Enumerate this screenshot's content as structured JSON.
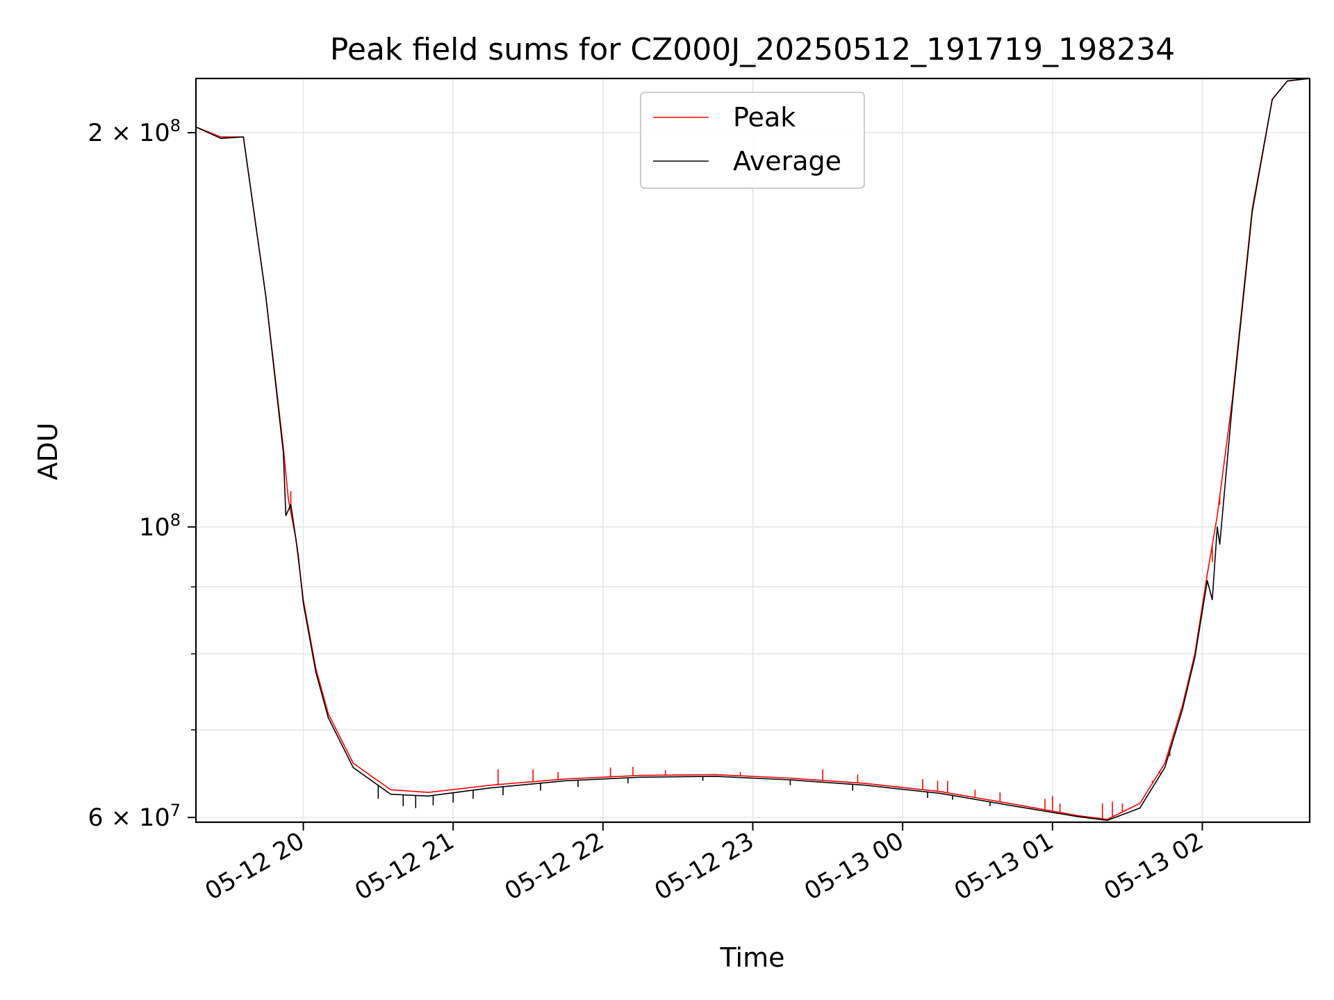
{
  "chart_data": {
    "type": "line",
    "title": "Peak field sums for CZ000J_20250512_191719_198234",
    "xlabel": "Time",
    "ylabel": "ADU",
    "yscale": "log",
    "xlim": [
      "2025-05-12T19:17:00",
      "2025-05-13T02:43:00"
    ],
    "ylim": [
      59500000,
      220000000
    ],
    "grid": true,
    "legend": "upper center",
    "x_ticks": [
      {
        "t": "2025-05-12T20:00",
        "label": "05-12 20"
      },
      {
        "t": "2025-05-12T21:00",
        "label": "05-12 21"
      },
      {
        "t": "2025-05-12T22:00",
        "label": "05-12 22"
      },
      {
        "t": "2025-05-12T23:00",
        "label": "05-12 23"
      },
      {
        "t": "2025-05-13T00:00",
        "label": "05-13 00"
      },
      {
        "t": "2025-05-13T01:00",
        "label": "05-13 01"
      },
      {
        "t": "2025-05-13T02:00",
        "label": "05-13 02"
      }
    ],
    "y_ticks": [
      {
        "v": 60000000,
        "label": "6 × 10",
        "sup": "7"
      },
      {
        "v": 100000000,
        "label": "10",
        "sup": "8"
      },
      {
        "v": 200000000,
        "label": "2 × 10",
        "sup": "8"
      }
    ],
    "y_minor_ticks": [
      70000000,
      80000000,
      90000000
    ],
    "series": [
      {
        "name": "Peak",
        "color": "#ff0000",
        "points": [
          [
            "2025-05-12T19:17",
            202000000
          ],
          [
            "2025-05-12T19:27",
            198500000
          ],
          [
            "2025-05-12T19:36",
            198500000
          ],
          [
            "2025-05-12T19:45",
            150000000
          ],
          [
            "2025-05-12T19:52",
            115000000
          ],
          [
            "2025-05-12T19:54",
            105000000
          ],
          [
            "2025-05-12T19:57",
            98000000
          ],
          [
            "2025-05-12T20:00",
            88000000
          ],
          [
            "2025-05-12T20:05",
            78000000
          ],
          [
            "2025-05-12T20:10",
            72000000
          ],
          [
            "2025-05-12T20:20",
            66000000
          ],
          [
            "2025-05-12T20:35",
            63000000
          ],
          [
            "2025-05-12T20:50",
            62700000
          ],
          [
            "2025-05-12T21:15",
            63500000
          ],
          [
            "2025-05-12T21:45",
            64200000
          ],
          [
            "2025-05-12T22:15",
            64600000
          ],
          [
            "2025-05-12T22:45",
            64700000
          ],
          [
            "2025-05-12T23:15",
            64300000
          ],
          [
            "2025-05-12T23:45",
            63700000
          ],
          [
            "2025-05-13T00:15",
            62800000
          ],
          [
            "2025-05-13T00:45",
            61400000
          ],
          [
            "2025-05-13T01:10",
            60200000
          ],
          [
            "2025-05-13T01:22",
            59800000
          ],
          [
            "2025-05-13T01:35",
            61500000
          ],
          [
            "2025-05-13T01:45",
            66000000
          ],
          [
            "2025-05-13T01:52",
            73000000
          ],
          [
            "2025-05-13T01:57",
            80000000
          ],
          [
            "2025-05-13T02:02",
            92000000
          ],
          [
            "2025-05-13T02:06",
            102000000
          ],
          [
            "2025-05-13T02:12",
            125000000
          ],
          [
            "2025-05-13T02:20",
            175000000
          ],
          [
            "2025-05-13T02:28",
            212000000
          ],
          [
            "2025-05-13T02:34",
            219000000
          ],
          [
            "2025-05-13T02:43",
            220000000
          ]
        ],
        "spikes": [
          [
            "2025-05-12T19:55",
            106500000
          ],
          [
            "2025-05-12T21:18",
            65300000
          ],
          [
            "2025-05-12T21:32",
            65300000
          ],
          [
            "2025-05-12T21:42",
            65000000
          ],
          [
            "2025-05-12T22:03",
            65500000
          ],
          [
            "2025-05-12T22:12",
            65600000
          ],
          [
            "2025-05-12T22:25",
            65200000
          ],
          [
            "2025-05-12T22:55",
            65000000
          ],
          [
            "2025-05-12T23:28",
            65300000
          ],
          [
            "2025-05-12T23:42",
            64700000
          ],
          [
            "2025-05-13T00:08",
            64200000
          ],
          [
            "2025-05-13T00:14",
            64000000
          ],
          [
            "2025-05-13T00:18",
            64000000
          ],
          [
            "2025-05-13T00:29",
            63000000
          ],
          [
            "2025-05-13T00:39",
            62700000
          ],
          [
            "2025-05-13T00:57",
            62000000
          ],
          [
            "2025-05-13T01:00",
            62300000
          ],
          [
            "2025-05-13T01:03",
            61500000
          ],
          [
            "2025-05-13T01:20",
            61500000
          ],
          [
            "2025-05-13T01:24",
            61700000
          ],
          [
            "2025-05-13T01:28",
            61500000
          ],
          [
            "2025-05-13T01:40",
            64000000
          ],
          [
            "2025-05-13T01:43",
            64800000
          ],
          [
            "2025-05-13T01:47",
            66800000
          ],
          [
            "2025-05-13T01:53",
            74500000
          ],
          [
            "2025-05-13T01:58",
            82000000
          ],
          [
            "2025-05-13T02:04",
            94000000
          ],
          [
            "2025-05-13T02:07",
            104000000
          ]
        ]
      },
      {
        "name": "Average",
        "color": "#000000",
        "points": [
          [
            "2025-05-12T19:17",
            202000000
          ],
          [
            "2025-05-12T19:27",
            198000000
          ],
          [
            "2025-05-12T19:36",
            198500000
          ],
          [
            "2025-05-12T19:45",
            150000000
          ],
          [
            "2025-05-12T19:52",
            114000000
          ],
          [
            "2025-05-12T19:53",
            102000000
          ],
          [
            "2025-05-12T19:55",
            104000000
          ],
          [
            "2025-05-12T19:58",
            95000000
          ],
          [
            "2025-05-12T20:00",
            87500000
          ],
          [
            "2025-05-12T20:05",
            77500000
          ],
          [
            "2025-05-12T20:10",
            71500000
          ],
          [
            "2025-05-12T20:20",
            65500000
          ],
          [
            "2025-05-12T20:35",
            62500000
          ],
          [
            "2025-05-12T20:50",
            62300000
          ],
          [
            "2025-05-12T21:15",
            63200000
          ],
          [
            "2025-05-12T21:45",
            64000000
          ],
          [
            "2025-05-12T22:15",
            64400000
          ],
          [
            "2025-05-12T22:45",
            64500000
          ],
          [
            "2025-05-12T23:15",
            64100000
          ],
          [
            "2025-05-12T23:45",
            63500000
          ],
          [
            "2025-05-13T00:15",
            62600000
          ],
          [
            "2025-05-13T00:45",
            61200000
          ],
          [
            "2025-05-13T01:10",
            60100000
          ],
          [
            "2025-05-13T01:22",
            59700000
          ],
          [
            "2025-05-13T01:35",
            61000000
          ],
          [
            "2025-05-13T01:45",
            65500000
          ],
          [
            "2025-05-13T01:52",
            72500000
          ],
          [
            "2025-05-13T01:57",
            79500000
          ],
          [
            "2025-05-13T02:02",
            91000000
          ],
          [
            "2025-05-13T02:04",
            88000000
          ],
          [
            "2025-05-13T02:06",
            100000000
          ],
          [
            "2025-05-13T02:07",
            97000000
          ],
          [
            "2025-05-13T02:12",
            124000000
          ],
          [
            "2025-05-13T02:20",
            174000000
          ],
          [
            "2025-05-13T02:28",
            212000000
          ],
          [
            "2025-05-13T02:34",
            219000000
          ],
          [
            "2025-05-13T02:43",
            220000000
          ]
        ],
        "dips": [
          [
            "2025-05-12T20:30",
            62000000
          ],
          [
            "2025-05-12T20:40",
            61200000
          ],
          [
            "2025-05-12T20:45",
            61000000
          ],
          [
            "2025-05-12T20:52",
            61300000
          ],
          [
            "2025-05-12T21:00",
            61600000
          ],
          [
            "2025-05-12T21:08",
            62000000
          ],
          [
            "2025-05-12T21:20",
            62400000
          ],
          [
            "2025-05-12T21:35",
            62900000
          ],
          [
            "2025-05-12T21:50",
            63300000
          ],
          [
            "2025-05-12T22:10",
            63700000
          ],
          [
            "2025-05-12T22:40",
            64000000
          ],
          [
            "2025-05-12T23:15",
            63500000
          ],
          [
            "2025-05-12T23:40",
            62900000
          ],
          [
            "2025-05-13T00:10",
            62100000
          ],
          [
            "2025-05-13T00:20",
            61900000
          ],
          [
            "2025-05-13T00:35",
            61200000
          ]
        ]
      }
    ]
  }
}
